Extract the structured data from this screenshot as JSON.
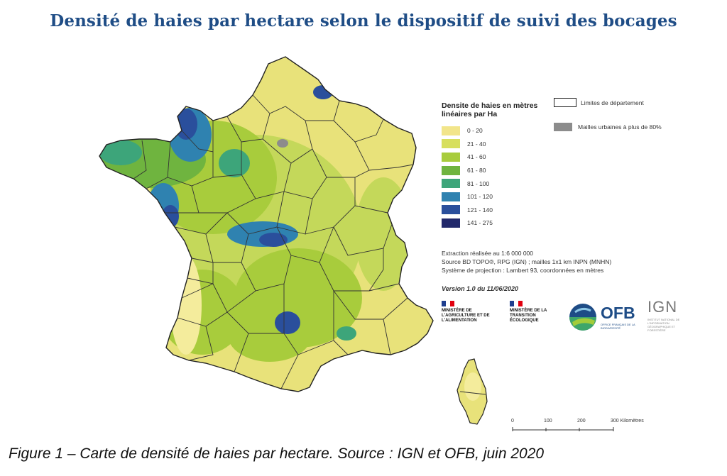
{
  "title": "Densité de haies par hectare selon le dispositif de suivi des bocages",
  "legend": {
    "title": "Densite de haies en mètres linéaires par Ha",
    "classes": [
      {
        "label": "0 - 20",
        "color": "#f2e58a"
      },
      {
        "label": "21 - 40",
        "color": "#d7df5d"
      },
      {
        "label": "41 - 60",
        "color": "#a8cc3c"
      },
      {
        "label": "61 - 80",
        "color": "#6fb43f"
      },
      {
        "label": "81 - 100",
        "color": "#3da57a"
      },
      {
        "label": "101 - 120",
        "color": "#2f82b0"
      },
      {
        "label": "121 - 140",
        "color": "#2a4f9c"
      },
      {
        "label": "141 - 275",
        "color": "#21286b"
      }
    ],
    "departement_label": "Limites de département",
    "urban_label": "Mailles urbaines à plus de 80%",
    "urban_color": "#8c8c8c"
  },
  "source": {
    "line1": "Extraction réalisée au 1:6 000 000",
    "line2": "Source BD TOPO®, RPG (IGN) ; mailles 1x1 km INPN (MNHN)",
    "line3": "Système de projection : Lambert 93, coordonnées en mètres"
  },
  "version": "Version 1.0 du 11/06/2020",
  "logos": {
    "ministere_agri": "MINISTÈRE DE L'AGRICULTURE ET DE L'ALIMENTATION",
    "ministere_transition": "MINISTÈRE DE LA TRANSITION ÉCOLOGIQUE",
    "ofb": "OFB",
    "ofb_sub": "OFFICE FRANÇAIS DE LA BIODIVERSITÉ",
    "ign": "IGN",
    "ign_sub": "INSTITUT NATIONAL DE L'INFORMATION GÉOGRAPHIQUE ET FORESTIÈRE"
  },
  "scale": {
    "ticks": [
      "0",
      "100",
      "200",
      "300 Kilomètres"
    ]
  },
  "caption": "Figure 1 – Carte de densité de haies par hectare. Source : IGN et OFB, juin 2020"
}
